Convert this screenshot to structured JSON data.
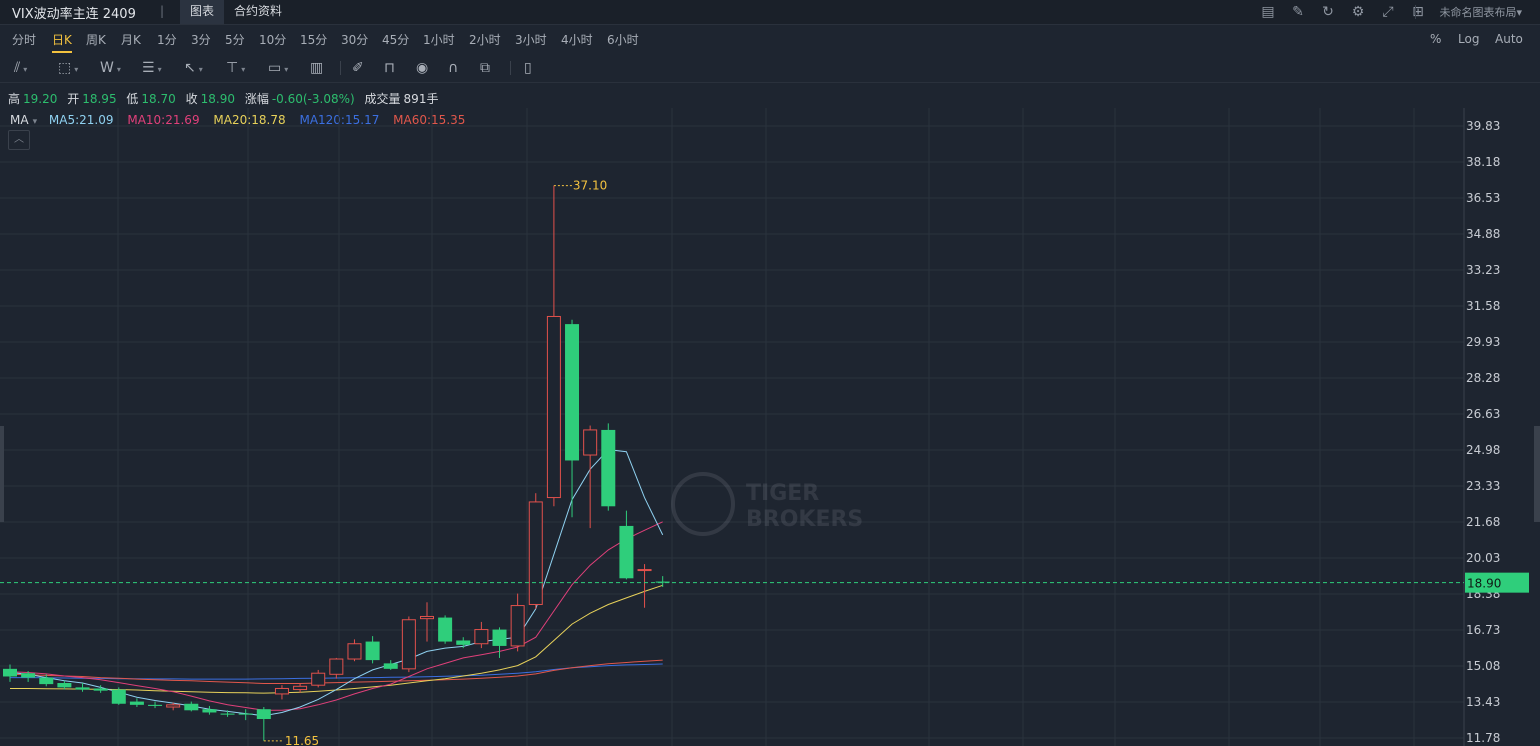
{
  "header": {
    "title": "VIX波动率主连 2409",
    "sep": "|",
    "tabs": [
      {
        "label": "图表"
      },
      {
        "label": "合约资料"
      }
    ],
    "icons": [
      "chart-icon",
      "pen-icon",
      "refresh-icon",
      "gear-icon",
      "fullscreen-icon",
      "layout-grid-icon"
    ],
    "layout_label": "未命名图表布局▾"
  },
  "intervals": {
    "items": [
      "分时",
      "日K",
      "周K",
      "月K",
      "1分",
      "3分",
      "5分",
      "10分",
      "15分",
      "30分",
      "45分",
      "1小时",
      "2小时",
      "3小时",
      "4小时",
      "6小时"
    ],
    "active": "日K",
    "scale_options": [
      "%",
      "Log",
      "Auto"
    ]
  },
  "toolbar": {
    "tools": [
      "trendline-icon",
      "rectangle-icon",
      "wave-icon",
      "fib-icon",
      "arrow-icon",
      "measure-icon",
      "text-icon",
      "indicator-icon",
      "brush-icon",
      "lock-icon",
      "eye-icon",
      "magnet-icon",
      "clone-icon",
      "trash-icon"
    ]
  },
  "quote": {
    "high_label": "高",
    "high": "19.20",
    "open_label": "开",
    "open": "18.95",
    "low_label": "低",
    "low": "18.70",
    "close_label": "收",
    "close": "18.90",
    "change_label": "涨幅",
    "change": "-0.60(-3.08%)",
    "volume_label": "成交量",
    "volume": "891手"
  },
  "ma_legend": {
    "label": "MA",
    "caret": "▾",
    "ma5": "MA5:21.09",
    "ma10": "MA10:21.69",
    "ma20": "MA20:18.78",
    "ma120": "MA120:15.17",
    "ma60": "MA60:15.35"
  },
  "collapse_icon": "chevron-up-icon",
  "chart_data": {
    "type": "candlestick",
    "y_ticks": [
      "39.83",
      "38.18",
      "36.53",
      "34.88",
      "33.23",
      "31.58",
      "29.93",
      "28.28",
      "26.63",
      "24.98",
      "23.33",
      "21.68",
      "20.03",
      "18.38",
      "16.73",
      "15.08",
      "13.43",
      "11.78"
    ],
    "current_price": "18.90",
    "high_annotation": "37.10",
    "low_annotation": "11.65",
    "watermark": [
      "TIGER",
      "BROKERS"
    ],
    "colors": {
      "up": "#e2514c",
      "down": "#2fce7b",
      "ma5": "#8fd1f0",
      "ma10": "#e0407a",
      "ma20": "#e7d15a",
      "ma120": "#3b6fe0",
      "ma60": "#e0574b",
      "price_line": "#2fce7b",
      "annotation": "#f3c23f"
    },
    "candles": [
      {
        "o": 14.95,
        "h": 15.15,
        "l": 14.35,
        "c": 14.6
      },
      {
        "o": 14.75,
        "h": 14.85,
        "l": 14.35,
        "c": 14.55
      },
      {
        "o": 14.55,
        "h": 14.7,
        "l": 14.15,
        "c": 14.25
      },
      {
        "o": 14.3,
        "h": 14.4,
        "l": 14.0,
        "c": 14.1
      },
      {
        "o": 14.1,
        "h": 14.3,
        "l": 13.9,
        "c": 14.0
      },
      {
        "o": 14.05,
        "h": 14.2,
        "l": 13.85,
        "c": 13.95
      },
      {
        "o": 14.0,
        "h": 14.1,
        "l": 13.3,
        "c": 13.35
      },
      {
        "o": 13.45,
        "h": 13.6,
        "l": 13.2,
        "c": 13.3
      },
      {
        "o": 13.3,
        "h": 13.45,
        "l": 13.15,
        "c": 13.25
      },
      {
        "o": 13.2,
        "h": 13.4,
        "l": 13.05,
        "c": 13.3
      },
      {
        "o": 13.35,
        "h": 13.45,
        "l": 13.0,
        "c": 13.05
      },
      {
        "o": 13.1,
        "h": 13.25,
        "l": 12.85,
        "c": 12.95
      },
      {
        "o": 12.9,
        "h": 13.05,
        "l": 12.75,
        "c": 12.85
      },
      {
        "o": 12.9,
        "h": 13.1,
        "l": 12.6,
        "c": 12.85
      },
      {
        "o": 13.1,
        "h": 13.2,
        "l": 11.65,
        "c": 12.65
      },
      {
        "o": 13.8,
        "h": 14.2,
        "l": 13.55,
        "c": 14.05
      },
      {
        "o": 14.0,
        "h": 14.3,
        "l": 13.85,
        "c": 14.15
      },
      {
        "o": 14.2,
        "h": 14.9,
        "l": 14.1,
        "c": 14.75
      },
      {
        "o": 14.7,
        "h": 15.45,
        "l": 14.5,
        "c": 15.4
      },
      {
        "o": 15.4,
        "h": 16.3,
        "l": 15.3,
        "c": 16.1
      },
      {
        "o": 16.2,
        "h": 16.45,
        "l": 15.2,
        "c": 15.35
      },
      {
        "o": 15.2,
        "h": 15.35,
        "l": 14.9,
        "c": 14.95
      },
      {
        "o": 14.95,
        "h": 17.35,
        "l": 14.8,
        "c": 17.2
      },
      {
        "o": 17.25,
        "h": 18.0,
        "l": 16.2,
        "c": 17.35
      },
      {
        "o": 17.3,
        "h": 17.4,
        "l": 16.1,
        "c": 16.2
      },
      {
        "o": 16.25,
        "h": 16.4,
        "l": 15.9,
        "c": 16.05
      },
      {
        "o": 16.1,
        "h": 17.1,
        "l": 15.9,
        "c": 16.75
      },
      {
        "o": 16.75,
        "h": 16.85,
        "l": 15.45,
        "c": 16.0
      },
      {
        "o": 16.0,
        "h": 18.4,
        "l": 15.75,
        "c": 17.85
      },
      {
        "o": 17.9,
        "h": 23.0,
        "l": 17.7,
        "c": 22.6
      },
      {
        "o": 22.8,
        "h": 37.1,
        "l": 22.4,
        "c": 31.1
      },
      {
        "o": 30.75,
        "h": 30.95,
        "l": 21.9,
        "c": 24.5
      },
      {
        "o": 24.75,
        "h": 26.1,
        "l": 21.4,
        "c": 25.9
      },
      {
        "o": 25.9,
        "h": 26.2,
        "l": 22.2,
        "c": 22.4
      },
      {
        "o": 21.5,
        "h": 22.2,
        "l": 19.05,
        "c": 19.1
      },
      {
        "o": 19.5,
        "h": 19.75,
        "l": 17.75,
        "c": 19.5
      },
      {
        "o": 18.95,
        "h": 19.2,
        "l": 18.7,
        "c": 18.9
      }
    ],
    "ma5": [
      14.78,
      14.7,
      14.55,
      14.4,
      14.3,
      14.1,
      13.88,
      13.65,
      13.5,
      13.38,
      13.25,
      13.1,
      13.0,
      12.9,
      12.8,
      12.95,
      13.2,
      13.55,
      14.0,
      14.5,
      14.9,
      15.15,
      15.4,
      15.75,
      15.9,
      15.98,
      16.2,
      16.3,
      16.4,
      17.7,
      20.2,
      22.7,
      24.1,
      25.0,
      24.9,
      22.8,
      21.09
    ],
    "ma10": [
      14.82,
      14.78,
      14.72,
      14.62,
      14.55,
      14.45,
      14.32,
      14.18,
      14.05,
      13.9,
      13.7,
      13.48,
      13.3,
      13.18,
      13.05,
      13.05,
      13.12,
      13.3,
      13.52,
      13.8,
      14.05,
      14.25,
      14.6,
      14.95,
      15.2,
      15.45,
      15.6,
      15.75,
      15.95,
      16.4,
      17.6,
      18.8,
      19.7,
      20.4,
      20.9,
      21.3,
      21.69
    ],
    "ma20": [
      14.05,
      14.05,
      14.04,
      14.03,
      14.02,
      14.01,
      14.0,
      13.98,
      13.95,
      13.92,
      13.9,
      13.88,
      13.86,
      13.85,
      13.84,
      13.85,
      13.88,
      13.92,
      13.98,
      14.05,
      14.12,
      14.2,
      14.3,
      14.4,
      14.5,
      14.62,
      14.75,
      14.9,
      15.1,
      15.5,
      16.25,
      17.0,
      17.5,
      17.9,
      18.2,
      18.5,
      18.78
    ],
    "ma60": [
      14.7,
      14.68,
      14.65,
      14.62,
      14.6,
      14.55,
      14.52,
      14.48,
      14.45,
      14.42,
      14.4,
      14.37,
      14.34,
      14.31,
      14.28,
      14.28,
      14.28,
      14.3,
      14.32,
      14.34,
      14.36,
      14.38,
      14.4,
      14.43,
      14.45,
      14.48,
      14.52,
      14.56,
      14.62,
      14.72,
      14.88,
      15.0,
      15.1,
      15.18,
      15.24,
      15.3,
      15.35
    ],
    "ma120": [
      14.55,
      14.55,
      14.54,
      14.53,
      14.52,
      14.51,
      14.5,
      14.5,
      14.49,
      14.49,
      14.48,
      14.48,
      14.48,
      14.48,
      14.49,
      14.5,
      14.51,
      14.52,
      14.53,
      14.54,
      14.55,
      14.56,
      14.57,
      14.59,
      14.61,
      14.63,
      14.66,
      14.7,
      14.75,
      14.82,
      14.92,
      15.0,
      15.05,
      15.1,
      15.13,
      15.15,
      15.17
    ]
  }
}
